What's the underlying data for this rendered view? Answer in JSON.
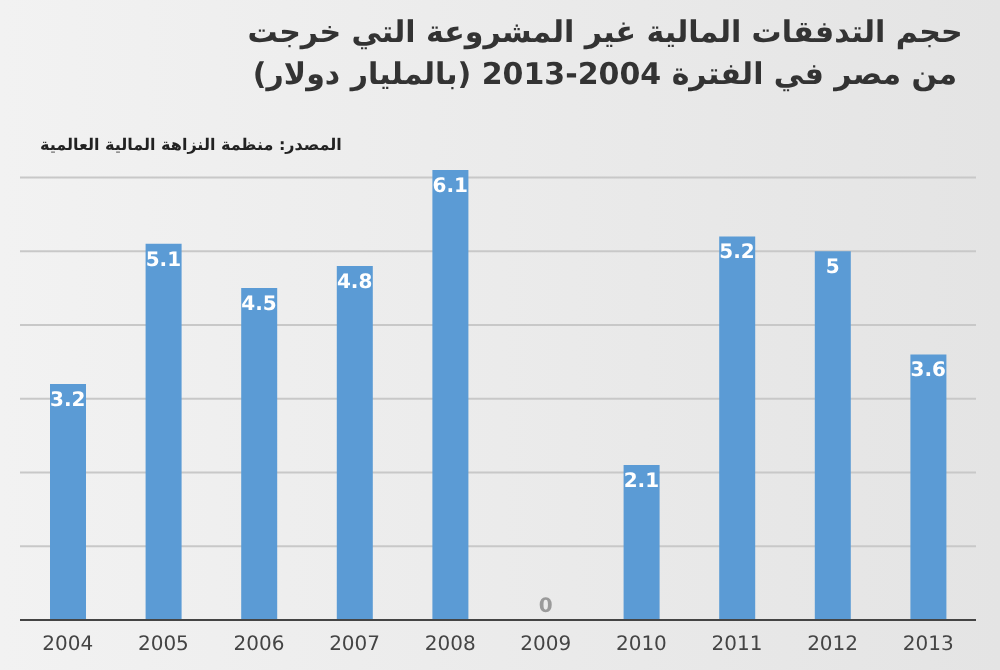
{
  "chart_data": {
    "type": "bar",
    "title": "حجم التدفقات المالية غير المشروعة التي خرجت من مصر في الفترة 2004-2013 (بالمليار دولار)",
    "annotations": [
      "المصدر: منظمة النزاهة المالية العالمية"
    ],
    "categories": [
      "2004",
      "2005",
      "2006",
      "2007",
      "2008",
      "2009",
      "2010",
      "2011",
      "2012",
      "2013"
    ],
    "values": [
      3.2,
      5.1,
      4.5,
      4.8,
      6.1,
      0,
      2.1,
      5.2,
      5,
      3.6
    ],
    "color": "#5b9bd5",
    "data_labels": true,
    "grid": "y",
    "tick_labels": "x",
    "yticks": [
      {
        "value": 0,
        "label": null
      },
      {
        "value": 1,
        "label": null
      },
      {
        "value": 2,
        "label": null
      },
      {
        "value": 3,
        "label": null
      },
      {
        "value": 4,
        "label": null
      },
      {
        "value": 5,
        "label": null
      },
      {
        "value": 6,
        "label": null
      }
    ],
    "legend": false
  }
}
